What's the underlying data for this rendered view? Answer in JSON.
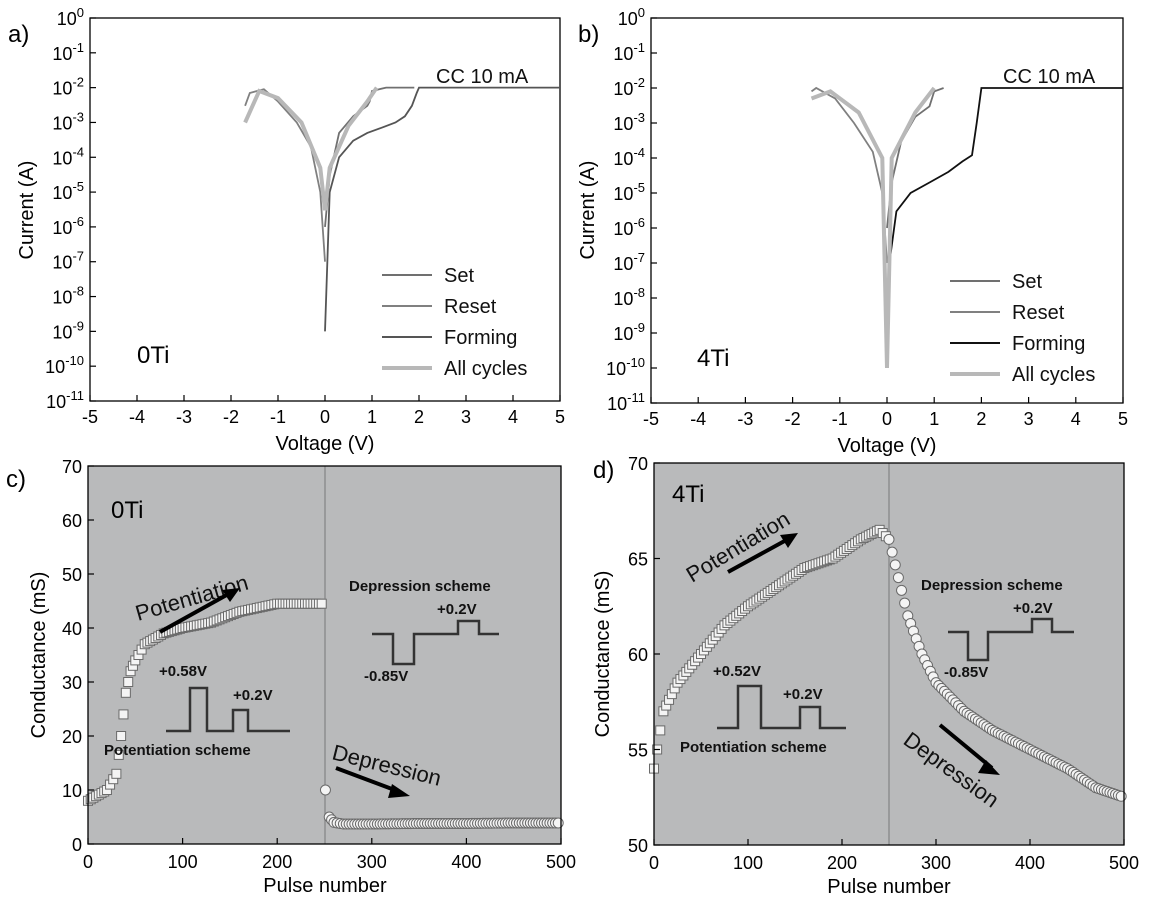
{
  "chart_data": [
    {
      "panel": "a)",
      "type": "line",
      "annotation": "0Ti",
      "cc_label": "CC 10 mA",
      "xlabel": "Voltage (V)",
      "ylabel": "Current (A)",
      "xlim": [
        -5,
        5
      ],
      "ylim_exp": [
        -11,
        0
      ],
      "y_scale": "log",
      "x_ticks": [
        "-5",
        "-4",
        "-3",
        "-2",
        "-1",
        "0",
        "1",
        "2",
        "3",
        "4",
        "5"
      ],
      "y_ticks": [
        "10-11",
        "10-10",
        "10-9",
        "10-8",
        "10-7",
        "10-6",
        "10-5",
        "10-4",
        "10-3",
        "10-2",
        "10-1",
        "100"
      ],
      "legend_position": "bottom-right",
      "legend": [
        {
          "label": "Set",
          "color": "#707070"
        },
        {
          "label": "Reset",
          "color": "#808080"
        },
        {
          "label": "Forming",
          "color": "#555555"
        },
        {
          "label": "All cycles",
          "color": "#b8b8b8"
        }
      ],
      "series": [
        {
          "name": "Forming",
          "color": "#555555",
          "x": [
            0,
            0.1,
            0.3,
            0.6,
            0.9,
            1.2,
            1.5,
            1.7,
            1.85,
            1.95,
            2.0,
            5.0
          ],
          "y": [
            1e-09,
            1e-05,
            0.0001,
            0.0003,
            0.0005,
            0.0007,
            0.001,
            0.0015,
            0.003,
            0.007,
            0.01,
            0.01
          ]
        },
        {
          "name": "Set",
          "color": "#707070",
          "x": [
            0,
            0.1,
            0.3,
            0.6,
            0.9,
            0.95,
            1.0,
            1.3,
            1.6,
            1.9
          ],
          "y": [
            1e-06,
            3e-05,
            0.0005,
            0.0015,
            0.003,
            0.004,
            0.008,
            0.01,
            0.01,
            0.01
          ]
        },
        {
          "name": "Reset",
          "color": "#808080",
          "x": [
            0,
            -0.1,
            -0.3,
            -0.6,
            -1.0,
            -1.3,
            -1.6,
            -1.7
          ],
          "y": [
            1e-07,
            1e-05,
            0.0002,
            0.001,
            0.004,
            0.009,
            0.007,
            0.003
          ]
        },
        {
          "name": "All cycles",
          "color": "#b8b8b8",
          "x": [
            -1.7,
            -1.4,
            -1.0,
            -0.5,
            -0.1,
            0,
            0.1,
            0.5,
            0.9,
            1.1
          ],
          "y": [
            0.001,
            0.008,
            0.005,
            0.001,
            5e-05,
            3e-06,
            5e-05,
            0.0008,
            0.004,
            0.01
          ]
        }
      ]
    },
    {
      "panel": "b)",
      "type": "line",
      "annotation": "4Ti",
      "cc_label": "CC 10 mA",
      "xlabel": "Voltage (V)",
      "ylabel": "Current (A)",
      "xlim": [
        -5,
        5
      ],
      "ylim_exp": [
        -11,
        0
      ],
      "y_scale": "log",
      "x_ticks": [
        "-5",
        "-4",
        "-3",
        "-2",
        "-1",
        "0",
        "1",
        "2",
        "3",
        "4",
        "5"
      ],
      "y_ticks": [
        "10-11",
        "10-10",
        "10-9",
        "10-8",
        "10-7",
        "10-6",
        "10-5",
        "10-4",
        "10-3",
        "10-2",
        "10-1",
        "100"
      ],
      "legend_position": "bottom-right",
      "legend": [
        {
          "label": "Set",
          "color": "#707070"
        },
        {
          "label": "Reset",
          "color": "#808080"
        },
        {
          "label": "Forming",
          "color": "#111111"
        },
        {
          "label": "All cycles",
          "color": "#b8b8b8"
        }
      ],
      "series": [
        {
          "name": "Forming",
          "color": "#111111",
          "x": [
            0,
            0.05,
            0.2,
            0.5,
            0.9,
            1.3,
            1.6,
            1.8,
            1.9,
            2.0,
            5.0
          ],
          "y": [
            1e-08,
            1e-07,
            3e-06,
            1e-05,
            2e-05,
            4e-05,
            8e-05,
            0.00012,
            0.001,
            0.01,
            0.01
          ]
        },
        {
          "name": "Set",
          "color": "#707070",
          "x": [
            0,
            0.1,
            0.3,
            0.6,
            0.9,
            1.0,
            1.2
          ],
          "y": [
            1e-06,
            2e-05,
            0.0003,
            0.0015,
            0.003,
            0.008,
            0.01
          ]
        },
        {
          "name": "Reset",
          "color": "#808080",
          "x": [
            0,
            -0.1,
            -0.3,
            -0.7,
            -1.1,
            -1.5,
            -1.6
          ],
          "y": [
            1e-07,
            1e-05,
            0.00015,
            0.001,
            0.005,
            0.01,
            0.008
          ]
        },
        {
          "name": "All cycles",
          "color": "#b8b8b8",
          "x": [
            -1.6,
            -1.2,
            -0.6,
            -0.1,
            0,
            0.1,
            0.6,
            1.0
          ],
          "y": [
            0.005,
            0.008,
            0.002,
            0.0001,
            1e-10,
            0.0001,
            0.002,
            0.01
          ]
        }
      ]
    },
    {
      "panel": "c)",
      "type": "scatter",
      "annotation": "0Ti",
      "xlabel": "Pulse number",
      "ylabel": "Conductance (mS)",
      "xlim": [
        0,
        500
      ],
      "ylim": [
        0,
        70
      ],
      "x_ticks": [
        "0",
        "100",
        "200",
        "300",
        "400",
        "500"
      ],
      "y_ticks": [
        "0",
        "10",
        "20",
        "30",
        "40",
        "50",
        "60",
        "70"
      ],
      "labels": {
        "potentiation": "Potentiation",
        "depression": "Depression",
        "depression_scheme": "Depression scheme",
        "potentiation_scheme": "Potentiation scheme",
        "pulse_pos": "+0.58V",
        "pulse_read": "+0.2V",
        "dep_pos": "+0.2V",
        "dep_neg": "-0.85V"
      },
      "series": [
        {
          "name": "Potentiation",
          "marker": "square",
          "x": [
            0,
            20,
            30,
            35,
            40,
            45,
            50,
            60,
            80,
            100,
            130,
            160,
            200,
            250
          ],
          "y": [
            8,
            10,
            13,
            20,
            28,
            32,
            34,
            37,
            39,
            40,
            41,
            43,
            44.5,
            44.5
          ]
        },
        {
          "name": "Depression",
          "marker": "circle",
          "x": [
            251,
            255,
            260,
            270,
            300,
            350,
            400,
            450,
            500
          ],
          "y": [
            10,
            5,
            4,
            3.7,
            3.7,
            3.8,
            3.8,
            3.9,
            3.9
          ]
        }
      ]
    },
    {
      "panel": "d)",
      "type": "scatter",
      "annotation": "4Ti",
      "xlabel": "Pulse number",
      "ylabel": "Conductance (mS)",
      "xlim": [
        0,
        500
      ],
      "ylim": [
        50,
        70
      ],
      "x_ticks": [
        "0",
        "100",
        "200",
        "300",
        "400",
        "500"
      ],
      "y_ticks": [
        "50",
        "55",
        "60",
        "65",
        "70"
      ],
      "labels": {
        "potentiation": "Potentiation",
        "depression": "Depression",
        "depression_scheme": "Depression scheme",
        "potentiation_scheme": "Potentiation scheme",
        "pulse_pos": "+0.52V",
        "pulse_read": "+0.2V",
        "dep_pos": "+0.2V",
        "dep_neg": "-0.85V"
      },
      "series": [
        {
          "name": "Potentiation",
          "marker": "square",
          "x": [
            0,
            10,
            25,
            50,
            75,
            100,
            130,
            160,
            190,
            220,
            240,
            250
          ],
          "y": [
            54,
            57,
            58.5,
            60,
            61.5,
            62.5,
            63.5,
            64.5,
            65,
            66,
            66.5,
            66
          ]
        },
        {
          "name": "Depression",
          "marker": "circle",
          "x": [
            250,
            260,
            270,
            285,
            300,
            330,
            360,
            400,
            440,
            470,
            500
          ],
          "y": [
            66,
            64,
            62,
            60,
            58.5,
            57,
            56,
            55,
            54,
            53,
            52.5
          ]
        }
      ]
    }
  ]
}
